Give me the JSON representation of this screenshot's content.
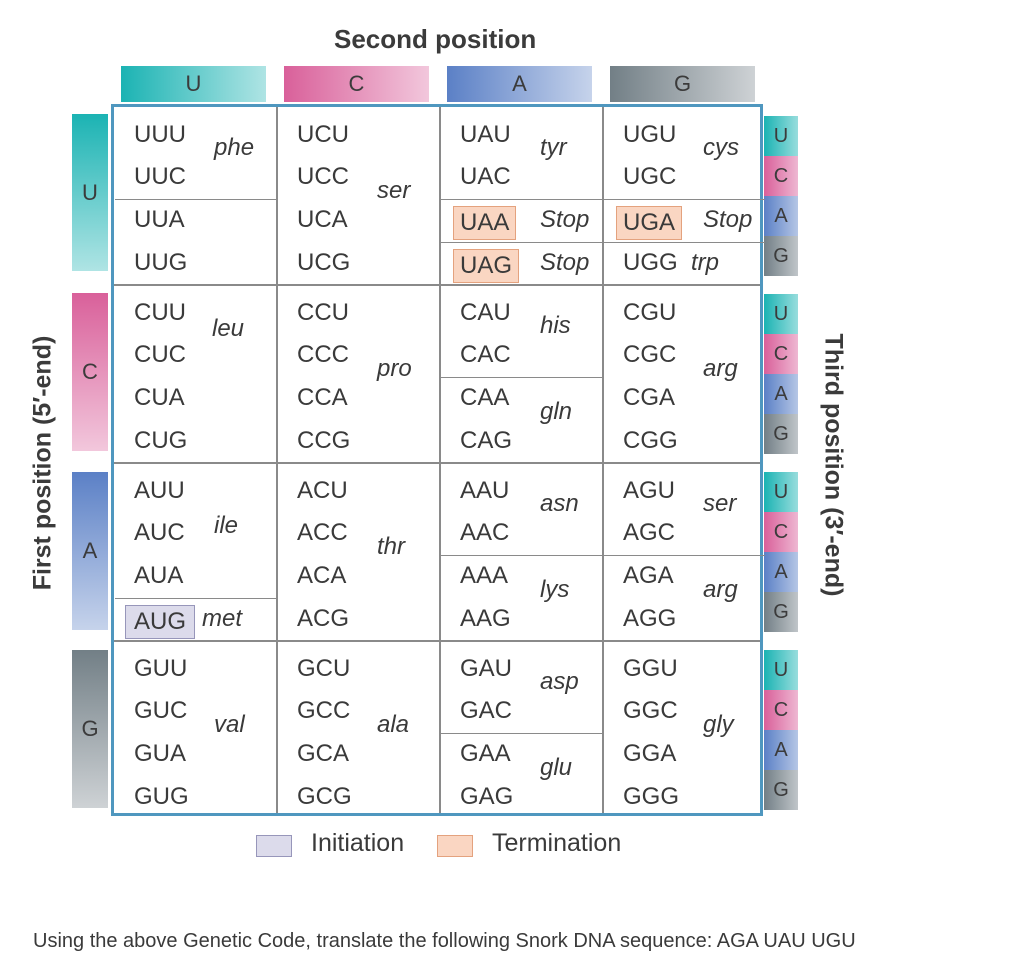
{
  "title": "Second position",
  "first_position_label": "First position (5′-end)",
  "third_position_label": "Third position (3′-end)",
  "bases": [
    {
      "letter": "U",
      "color": "#1bb3b3"
    },
    {
      "letter": "C",
      "color": "#d9609a"
    },
    {
      "letter": "A",
      "color": "#5b80c6"
    },
    {
      "letter": "G",
      "color": "#727f86"
    }
  ],
  "rows": [
    {
      "first": "U",
      "columns": [
        {
          "codons": [
            "UUU",
            "UUC",
            "UUA",
            "UUG"
          ],
          "aminoacids": [
            {
              "label": "phe",
              "span": [
                0,
                1
              ]
            },
            {
              "label": "leu",
              "span": [
                2,
                5
              ]
            }
          ]
        },
        {
          "codons": [
            "UCU",
            "UCC",
            "UCA",
            "UCG"
          ],
          "aminoacids": [
            {
              "label": "ser",
              "span": [
                0,
                3
              ]
            }
          ]
        },
        {
          "codons": [
            "UAU",
            "UAC",
            "UAA",
            "UAG"
          ],
          "aminoacids": [
            {
              "label": "tyr",
              "span": [
                0,
                1
              ]
            },
            {
              "label": "Stop",
              "span": [
                2,
                2
              ]
            },
            {
              "label": "Stop",
              "span": [
                3,
                3
              ]
            }
          ]
        },
        {
          "codons": [
            "UGU",
            "UGC",
            "UGA",
            "UGG"
          ],
          "aminoacids": [
            {
              "label": "cys",
              "span": [
                0,
                1
              ]
            },
            {
              "label": "Stop",
              "span": [
                2,
                2
              ]
            },
            {
              "label": "trp",
              "span": [
                3,
                3
              ]
            }
          ]
        }
      ]
    },
    {
      "first": "C",
      "columns": [
        {
          "codons": [
            "CUU",
            "CUC",
            "CUA",
            "CUG"
          ]
        },
        {
          "codons": [
            "CCU",
            "CCC",
            "CCA",
            "CCG"
          ],
          "aminoacids": [
            {
              "label": "pro",
              "span": [
                0,
                3
              ]
            }
          ]
        },
        {
          "codons": [
            "CAU",
            "CAC",
            "CAA",
            "CAG"
          ],
          "aminoacids": [
            {
              "label": "his",
              "span": [
                0,
                1
              ]
            },
            {
              "label": "gln",
              "span": [
                2,
                3
              ]
            }
          ]
        },
        {
          "codons": [
            "CGU",
            "CGC",
            "CGA",
            "CGG"
          ],
          "aminoacids": [
            {
              "label": "arg",
              "span": [
                0,
                3
              ]
            }
          ]
        }
      ]
    },
    {
      "first": "A",
      "columns": [
        {
          "codons": [
            "AUU",
            "AUC",
            "AUA",
            "AUG"
          ],
          "aminoacids": [
            {
              "label": "ile",
              "span": [
                0,
                2
              ]
            },
            {
              "label": "met",
              "span": [
                3,
                3
              ]
            }
          ]
        },
        {
          "codons": [
            "ACU",
            "ACC",
            "ACA",
            "ACG"
          ],
          "aminoacids": [
            {
              "label": "thr",
              "span": [
                0,
                3
              ]
            }
          ]
        },
        {
          "codons": [
            "AAU",
            "AAC",
            "AAA",
            "AAG"
          ],
          "aminoacids": [
            {
              "label": "asn",
              "span": [
                0,
                1
              ]
            },
            {
              "label": "lys",
              "span": [
                2,
                3
              ]
            }
          ]
        },
        {
          "codons": [
            "AGU",
            "AGC",
            "AGA",
            "AGG"
          ],
          "aminoacids": [
            {
              "label": "ser",
              "span": [
                0,
                1
              ]
            },
            {
              "label": "arg",
              "span": [
                2,
                3
              ]
            }
          ]
        }
      ]
    },
    {
      "first": "G",
      "columns": [
        {
          "codons": [
            "GUU",
            "GUC",
            "GUA",
            "GUG"
          ],
          "aminoacids": [
            {
              "label": "val",
              "span": [
                0,
                3
              ]
            }
          ]
        },
        {
          "codons": [
            "GCU",
            "GCC",
            "GCA",
            "GCG"
          ],
          "aminoacids": [
            {
              "label": "ala",
              "span": [
                0,
                3
              ]
            }
          ]
        },
        {
          "codons": [
            "GAU",
            "GAC",
            "GAA",
            "GAG"
          ],
          "aminoacids": [
            {
              "label": "asp",
              "span": [
                0,
                1
              ]
            },
            {
              "label": "glu",
              "span": [
                2,
                3
              ]
            }
          ]
        },
        {
          "codons": [
            "GGU",
            "GGC",
            "GGA",
            "GGG"
          ],
          "aminoacids": [
            {
              "label": "gly",
              "span": [
                0,
                3
              ]
            }
          ]
        }
      ]
    }
  ],
  "initiation_codons": [
    "AUG"
  ],
  "termination_codons": [
    "UAA",
    "UAG",
    "UGA"
  ],
  "legend": {
    "initiation": {
      "label": "Initiation",
      "color": "#dcdbeb"
    },
    "termination": {
      "label": "Termination",
      "color": "#fad6c2"
    }
  },
  "question": "Using the above Genetic Code, translate the following Snork DNA sequence: AGA UAU UGU"
}
